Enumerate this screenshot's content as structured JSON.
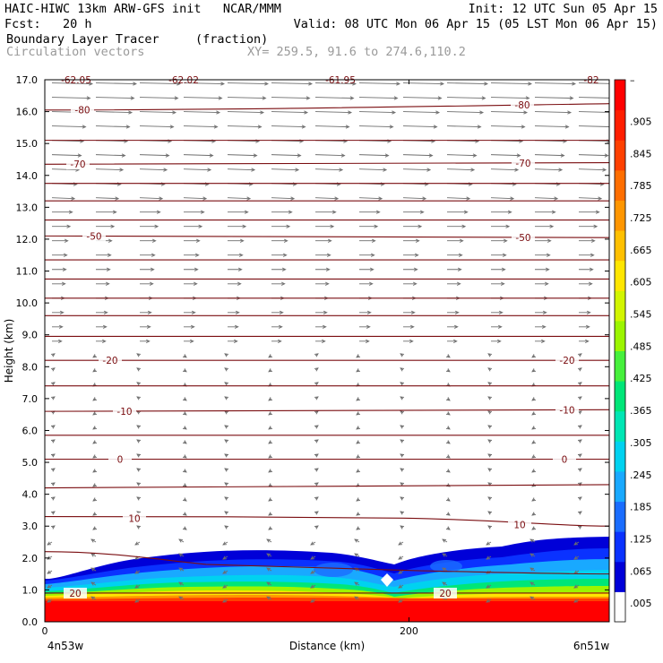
{
  "header": {
    "line1_left": "HAIC-HIWC 13km ARW-GFS init   NCAR/MMM",
    "line1_right": "Init: 12 UTC Sun 05 Apr 15",
    "line2_left": "Fcst:   20 h",
    "line2_right": "Valid: 08 UTC Mon 06 Apr 15 (05 LST Mon 06 Apr 15)",
    "line3_left": "Boundary Layer Tracer",
    "line3_mid": "(fraction)",
    "line4_left": "Circulation vectors",
    "line4_mid": "XY= 259.5, 91.6 to 274.6,110.2"
  },
  "colors": {
    "contour": "#7a0d10",
    "vector": "#6e6e6e"
  },
  "chart_data": {
    "type": "cross-section",
    "ylabel": "Height (km)",
    "xlabel": "Distance (km)",
    "ylim": [
      0,
      17
    ],
    "xlim": [
      0,
      310
    ],
    "y_ticks": [
      "0.0",
      "1.0",
      "2.0",
      "3.0",
      "4.0",
      "5.0",
      "6.0",
      "7.0",
      "8.0",
      "9.0",
      "10.0",
      "11.0",
      "12.0",
      "13.0",
      "14.0",
      "15.0",
      "16.0",
      "17.0"
    ],
    "x_ticks": [
      {
        "value": 0,
        "label": "0"
      },
      {
        "value": 200,
        "label": "200"
      }
    ],
    "x_end_labels": {
      "left": "4n53w",
      "right": "6n51w"
    },
    "colorbar": {
      "labels": [
        ".005",
        ".065",
        ".125",
        ".185",
        ".245",
        ".305",
        ".365",
        ".425",
        ".485",
        ".545",
        ".605",
        ".665",
        ".725",
        ".785",
        ".845",
        ".905"
      ],
      "colors": [
        "#ffffff",
        "#0000d8",
        "#0a32ff",
        "#1a6dff",
        "#19a9ff",
        "#00d2f0",
        "#00e6b4",
        "#00e678",
        "#46f03c",
        "#9cf500",
        "#d2f500",
        "#ffe600",
        "#ffc000",
        "#ff9600",
        "#ff6e00",
        "#ff4000",
        "#ff1e00",
        "#ff0000"
      ],
      "top_label": "–"
    },
    "temperature_contours": [
      {
        "label": "-62.05",
        "y_left": 17.0,
        "y_right": 17.0
      },
      {
        "label": "-62.02",
        "y_left": 17.0,
        "y_right": 17.0
      },
      {
        "label": "-61.95",
        "y_left": 17.0,
        "y_right": 17.0
      },
      {
        "label": "-82",
        "y_left": 17.0,
        "y_right": 17.0
      },
      {
        "label": "-80",
        "y_left": 16.05,
        "y_right": 16.25
      },
      {
        "label": "",
        "y_left": 15.1,
        "y_right": 15.1
      },
      {
        "label": "-70",
        "y_left": 14.35,
        "y_right": 14.4
      },
      {
        "label": "",
        "y_left": 13.75,
        "y_right": 13.75
      },
      {
        "label": "",
        "y_left": 13.2,
        "y_right": 13.2
      },
      {
        "label": "",
        "y_left": 12.6,
        "y_right": 12.6
      },
      {
        "label": "-50",
        "y_left": 12.1,
        "y_right": 12.05
      },
      {
        "label": "",
        "y_left": 11.35,
        "y_right": 11.35
      },
      {
        "label": "",
        "y_left": 10.75,
        "y_right": 10.75
      },
      {
        "label": "",
        "y_left": 10.15,
        "y_right": 10.15
      },
      {
        "label": "",
        "y_left": 9.6,
        "y_right": 9.6
      },
      {
        "label": "",
        "y_left": 8.95,
        "y_right": 8.95
      },
      {
        "label": "-20",
        "y_left": 8.2,
        "y_right": 8.2
      },
      {
        "label": "",
        "y_left": 7.4,
        "y_right": 7.4
      },
      {
        "label": "-10",
        "y_left": 6.6,
        "y_right": 6.65
      },
      {
        "label": "",
        "y_left": 5.85,
        "y_right": 5.85
      },
      {
        "label": "0",
        "y_left": 5.1,
        "y_right": 5.1
      },
      {
        "label": "",
        "y_left": 4.2,
        "y_right": 4.3
      },
      {
        "label": "10",
        "y_left": 3.3,
        "y_right": 3.0
      },
      {
        "label": "",
        "y_left": 2.2,
        "y_right": 1.5
      },
      {
        "label": "20",
        "y_left": 0.9,
        "y_right": 0.9
      }
    ]
  }
}
